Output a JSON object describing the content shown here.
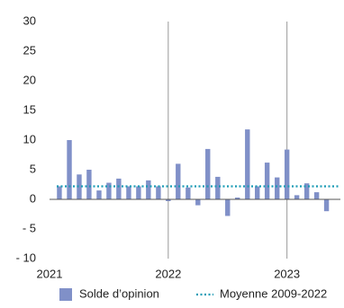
{
  "chart_data": {
    "type": "bar",
    "x": [
      2021.083,
      2021.167,
      2021.25,
      2021.333,
      2021.417,
      2021.5,
      2021.583,
      2021.667,
      2021.75,
      2021.833,
      2021.917,
      2022,
      2022.083,
      2022.167,
      2022.25,
      2022.333,
      2022.417,
      2022.5,
      2022.583,
      2022.667,
      2022.75,
      2022.833,
      2022.917,
      2023,
      2023.083,
      2023.167,
      2023.25,
      2023.333
    ],
    "series": [
      {
        "name": "Solde d’opinion",
        "color": "#8090c8",
        "values": [
          2.2,
          10,
          4.2,
          5,
          1.5,
          2.8,
          3.5,
          2.2,
          2.2,
          3.2,
          2.2,
          -0.3,
          6,
          2,
          -1,
          8.5,
          3.8,
          -2.8,
          0.3,
          11.8,
          2.2,
          6.2,
          3.7,
          8.4,
          0.7,
          2.7,
          1.2,
          -2
        ]
      }
    ],
    "mean": {
      "name": "Moyenne 2009-2022",
      "value": 2.2,
      "color": "#1a9bb5"
    },
    "xlim": [
      2021,
      2023.45
    ],
    "xticks": [
      2021,
      2022,
      2023
    ],
    "ylim": [
      -10,
      30
    ],
    "yticks": [
      {
        "value": -10,
        "label": "- 10"
      },
      {
        "value": -5,
        "label": "- 5"
      },
      0,
      5,
      10,
      15,
      20,
      25,
      30
    ],
    "xgrid": true
  }
}
